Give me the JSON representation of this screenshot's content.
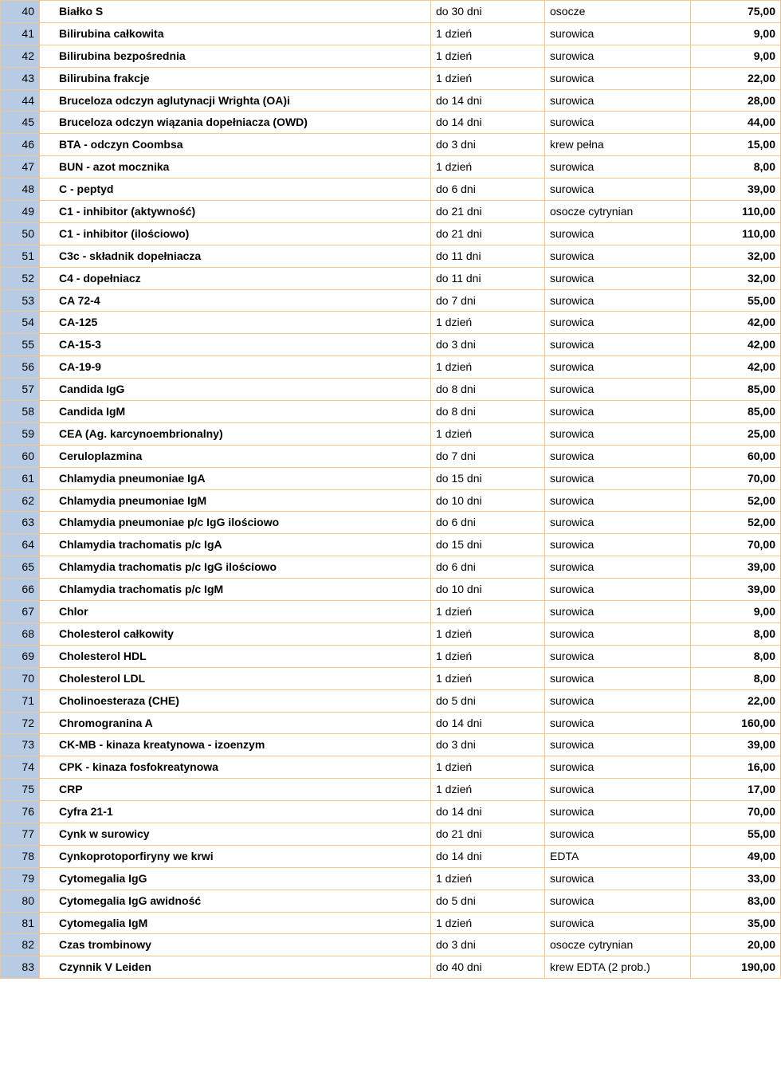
{
  "table": {
    "columns": [
      "num",
      "name",
      "time",
      "sample",
      "price"
    ],
    "rows": [
      {
        "num": "40",
        "name": "Białko S",
        "time": "do 30 dni",
        "sample": "osocze",
        "price": "75,00",
        "span": 1
      },
      {
        "num": "41",
        "name": "Bilirubina  całkowita",
        "time": "1 dzień",
        "sample": "surowica",
        "price": "9,00",
        "span": 1
      },
      {
        "num": "42",
        "name": "Bilirubina  bezpośrednia",
        "time": "1 dzień",
        "sample": "surowica",
        "price": "9,00",
        "span": 1
      },
      {
        "num": "43",
        "name": "Bilirubina frakcje",
        "time": "1 dzień",
        "sample": "surowica",
        "price": "22,00",
        "span": 1
      },
      {
        "num": "44",
        "name": "Bruceloza odczyn aglutynacji Wrighta (OA)i",
        "time": "do 14 dni",
        "sample": "surowica",
        "price": "28,00",
        "span": 1
      },
      {
        "num": "45",
        "name": "Bruceloza odczyn wiązania dopełniacza (OWD)",
        "time": "do 14 dni",
        "sample": "surowica",
        "price": "44,00",
        "span": 2,
        "name_cont": "(OWD)",
        "name_first": "Bruceloza odczyn wiązania dopełniacza"
      },
      {
        "num": "46",
        "name": "BTA - odczyn Coombsa",
        "time": "do 3 dni",
        "sample": "krew pełna",
        "price": "15,00",
        "span": 1
      },
      {
        "num": "47",
        "name": "BUN - azot mocznika",
        "time": "1 dzień",
        "sample": "surowica",
        "price": "8,00",
        "span": 1
      },
      {
        "num": "48",
        "name": "C - peptyd",
        "time": "do 6 dni",
        "sample": "surowica",
        "price": "39,00",
        "span": 1
      },
      {
        "num": "49",
        "name": "C1 - inhibitor (aktywność)",
        "time": "do 21 dni",
        "sample": "osocze cytrynian",
        "sample_first": "osocze",
        "sample_cont": "cytrynian",
        "price": "110,00",
        "span": 2
      },
      {
        "num": "50",
        "name": "C1 - inhibitor (ilościowo)",
        "time": "do 21 dni",
        "sample": "surowica",
        "price": "110,00",
        "span": 1
      },
      {
        "num": "51",
        "name": "C3c - składnik dopełniacza",
        "time": "do 11 dni",
        "sample": "surowica",
        "price": "32,00",
        "span": 1
      },
      {
        "num": "52",
        "name": "C4 - dopełniacz",
        "time": "do 11 dni",
        "sample": "surowica",
        "price": "32,00",
        "span": 1
      },
      {
        "num": "53",
        "name": "CA 72-4",
        "time": "do 7 dni",
        "sample": "surowica",
        "price": "55,00",
        "span": 1
      },
      {
        "num": "54",
        "name": "CA-125",
        "time": "1 dzień",
        "sample": "surowica",
        "price": "42,00",
        "span": 1
      },
      {
        "num": "55",
        "name": "CA-15-3",
        "time": "do 3 dni",
        "sample": "surowica",
        "price": "42,00",
        "span": 1
      },
      {
        "num": "56",
        "name": "CA-19-9",
        "time": "1 dzień",
        "sample": "surowica",
        "price": "42,00",
        "span": 1
      },
      {
        "num": "57",
        "name": "Candida IgG",
        "time": "do 8 dni",
        "sample": "surowica",
        "price": "85,00",
        "span": 1
      },
      {
        "num": "58",
        "name": "Candida IgM",
        "time": "do 8 dni",
        "sample": "surowica",
        "price": "85,00",
        "span": 1
      },
      {
        "num": "59",
        "name": "CEA (Ag. karcynoembrionalny)",
        "time": "1 dzień",
        "sample": "surowica",
        "price": "25,00",
        "span": 1
      },
      {
        "num": "60",
        "name": "Ceruloplazmina",
        "time": "do 7 dni",
        "sample": "surowica",
        "price": "60,00",
        "span": 1
      },
      {
        "num": "61",
        "name": "Chlamydia pneumoniae IgA",
        "time": "do 15 dni",
        "sample": "surowica",
        "price": "70,00",
        "span": 1
      },
      {
        "num": "62",
        "name": "Chlamydia pneumoniae IgM",
        "time": "do 10 dni",
        "sample": "surowica",
        "price": "52,00",
        "span": 1
      },
      {
        "num": "63",
        "name": "Chlamydia pneumoniae p/c IgG ilościowo",
        "time": "do 6 dni",
        "sample": "surowica",
        "price": "52,00",
        "span": 1
      },
      {
        "num": "64",
        "name": "Chlamydia trachomatis p/c IgA",
        "time": "do 15 dni",
        "sample": "surowica",
        "price": "70,00",
        "span": 1
      },
      {
        "num": "65",
        "name": "Chlamydia trachomatis p/c IgG ilościowo",
        "time": "do 6 dni",
        "sample": "surowica",
        "price": "39,00",
        "span": 1
      },
      {
        "num": "66",
        "name": "Chlamydia trachomatis p/c IgM",
        "time": "do 10 dni",
        "sample": "surowica",
        "price": "39,00",
        "span": 1
      },
      {
        "num": "67",
        "name": "Chlor",
        "time": "1 dzień",
        "sample": "surowica",
        "price": "9,00",
        "span": 1
      },
      {
        "num": "68",
        "name": "Cholesterol  całkowity",
        "time": "1 dzień",
        "sample": "surowica",
        "price": "8,00",
        "span": 1
      },
      {
        "num": "69",
        "name": "Cholesterol HDL",
        "time": "1 dzień",
        "sample": "surowica",
        "price": "8,00",
        "span": 1
      },
      {
        "num": "70",
        "name": "Cholesterol LDL",
        "time": "1 dzień",
        "sample": "surowica",
        "price": "8,00",
        "span": 1
      },
      {
        "num": "71",
        "name": "Cholinoesteraza (CHE)",
        "time": "do 5 dni",
        "sample": "surowica",
        "price": "22,00",
        "span": 1
      },
      {
        "num": "72",
        "name": "Chromogranina A",
        "time": "do 14 dni",
        "sample": "surowica",
        "price": "160,00",
        "span": 1
      },
      {
        "num": "73",
        "name": "CK-MB - kinaza kreatynowa - izoenzym",
        "time": "do 3 dni",
        "sample": "surowica",
        "price": "39,00",
        "span": 1
      },
      {
        "num": "74",
        "name": "CPK - kinaza fosfokreatynowa",
        "time": "1 dzień",
        "sample": "surowica",
        "price": "16,00",
        "span": 1
      },
      {
        "num": "75",
        "name": "CRP",
        "time": "1 dzień",
        "sample": "surowica",
        "price": "17,00",
        "span": 1
      },
      {
        "num": "76",
        "name": "Cyfra 21-1",
        "time": "do 14 dni",
        "sample": "surowica",
        "price": "70,00",
        "span": 1
      },
      {
        "num": "77",
        "name": "Cynk w surowicy",
        "time": "do 21 dni",
        "sample": "surowica",
        "price": "55,00",
        "span": 1
      },
      {
        "num": "78",
        "name": "Cynkoprotoporfiryny we krwi",
        "time": "do 14 dni",
        "sample": "EDTA",
        "price": "49,00",
        "span": 1
      },
      {
        "num": "79",
        "name": "Cytomegalia IgG",
        "time": "1 dzień",
        "sample": "surowica",
        "price": "33,00",
        "span": 1
      },
      {
        "num": "80",
        "name": "Cytomegalia IgG awidność",
        "time": "do 5 dni",
        "sample": "surowica",
        "price": "83,00",
        "span": 1
      },
      {
        "num": "81",
        "name": "Cytomegalia IgM",
        "time": "1 dzień",
        "sample": "surowica",
        "price": "35,00",
        "span": 1
      },
      {
        "num": "82",
        "name": "Czas trombinowy",
        "time": "do 3 dni",
        "sample": "osocze cytrynian",
        "sample_first": "osocze",
        "sample_cont": "cytrynian",
        "price": "20,00",
        "span": 2
      },
      {
        "num": "83",
        "name": "Czynnik V Leiden",
        "time": "do 40 dni",
        "sample": "krew EDTA (2 prob.)",
        "sample_first": "krew EDTA (2",
        "sample_cont": "prob.)",
        "price": "190,00",
        "span": 2
      }
    ]
  },
  "styling": {
    "border_color": "#f4c58c",
    "num_bg": "#b8cbe4",
    "font_family": "Arial",
    "name_weight": "bold",
    "price_weight": "bold",
    "font_size_pt": 14
  }
}
